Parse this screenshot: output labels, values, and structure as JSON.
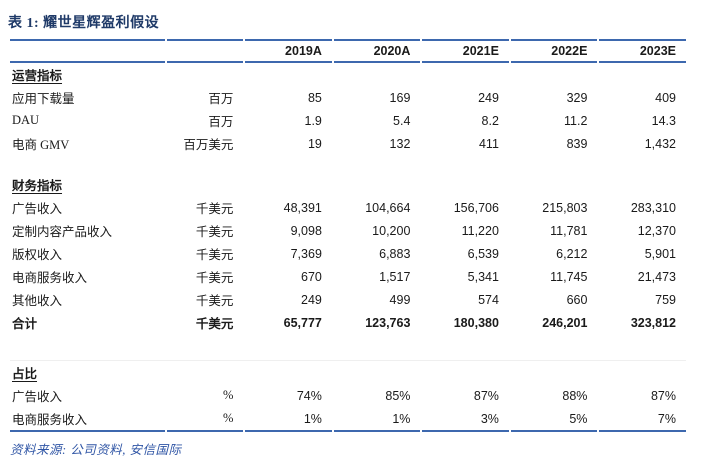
{
  "title": "表 1: 耀世星辉盈利假设",
  "columns": [
    "2019A",
    "2020A",
    "2021E",
    "2022E",
    "2023E"
  ],
  "sections": [
    {
      "heading": "运营指标",
      "rows": [
        {
          "label": "应用下载量",
          "unit": "百万",
          "values": [
            "85",
            "169",
            "249",
            "329",
            "409"
          ]
        },
        {
          "label": "DAU",
          "unit": "百万",
          "values": [
            "1.9",
            "5.4",
            "8.2",
            "11.2",
            "14.3"
          ]
        },
        {
          "label": "电商 GMV",
          "unit": "百万美元",
          "values": [
            "19",
            "132",
            "411",
            "839",
            "1,432"
          ]
        }
      ]
    },
    {
      "heading": "财务指标",
      "rows": [
        {
          "label": "广告收入",
          "unit": "千美元",
          "values": [
            "48,391",
            "104,664",
            "156,706",
            "215,803",
            "283,310"
          ]
        },
        {
          "label": "定制内容产品收入",
          "unit": "千美元",
          "values": [
            "9,098",
            "10,200",
            "11,220",
            "11,781",
            "12,370"
          ]
        },
        {
          "label": "版权收入",
          "unit": "千美元",
          "values": [
            "7,369",
            "6,883",
            "6,539",
            "6,212",
            "5,901"
          ]
        },
        {
          "label": "电商服务收入",
          "unit": "千美元",
          "values": [
            "670",
            "1,517",
            "5,341",
            "11,745",
            "21,473"
          ]
        },
        {
          "label": "其他收入",
          "unit": "千美元",
          "values": [
            "249",
            "499",
            "574",
            "660",
            "759"
          ]
        },
        {
          "label": "合计",
          "unit": "千美元",
          "values": [
            "65,777",
            "123,763",
            "180,380",
            "246,201",
            "323,812"
          ],
          "bold": true
        }
      ]
    },
    {
      "heading": "占比",
      "rows": [
        {
          "label": "广告收入",
          "unit": "%",
          "values": [
            "74%",
            "85%",
            "87%",
            "88%",
            "87%"
          ]
        },
        {
          "label": "电商服务收入",
          "unit": "%",
          "values": [
            "1%",
            "1%",
            "3%",
            "5%",
            "7%"
          ]
        }
      ]
    }
  ],
  "source": "资料来源: 公司资料, 安信国际",
  "colors": {
    "rule_line": "#3d68ae",
    "title_navy": "#1f3a68",
    "source_blue": "#2f55a5",
    "body_text": "#1a1a1a"
  }
}
